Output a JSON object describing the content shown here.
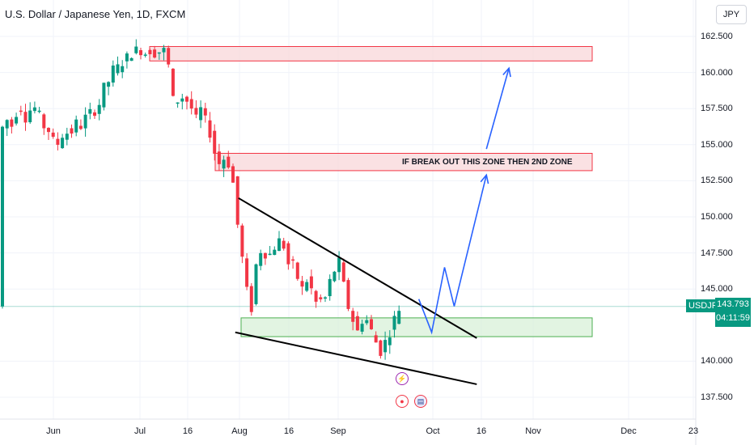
{
  "header": {
    "title": "U.S. Dollar / Japanese Yen, 1D, FXCM",
    "currency_button": "JPY"
  },
  "price_tag": {
    "symbol": "USDJPY",
    "price": "143.793",
    "countdown": "04:11:59"
  },
  "colors": {
    "up": "#089981",
    "down": "#f23645",
    "arrow": "#2962ff",
    "resistance_fill": "#f8d7da",
    "resistance_stroke": "#f23645",
    "support_fill": "#d8f0d8",
    "support_stroke": "#4caf50"
  },
  "annotations": {
    "zone_note": "IF BREAK OUT THIS ZONE THEN 2ND ZONE"
  },
  "events": [
    "lightning-icon",
    "record-icon",
    "us-flag-icon"
  ],
  "chart_data": {
    "type": "candlestick",
    "y_ticks": [
      "162.500",
      "160.000",
      "157.500",
      "155.000",
      "152.500",
      "150.000",
      "147.500",
      "145.000",
      "140.000",
      "137.500"
    ],
    "x_ticks": [
      "Jun",
      "Jul",
      "16",
      "Aug",
      "16",
      "Sep",
      "Oct",
      "16",
      "Nov",
      "Dec",
      "23"
    ],
    "ylim": [
      136.6,
      163.3
    ],
    "current_price": 143.793,
    "zones": [
      {
        "kind": "resistance",
        "from": 160.8,
        "to": 161.8
      },
      {
        "kind": "resistance",
        "from": 153.2,
        "to": 154.4
      },
      {
        "kind": "support",
        "from": 141.7,
        "to": 143.0
      }
    ],
    "trendlines": [
      {
        "name": "upper",
        "from": [
          "Aug 1",
          151.3
        ],
        "to": [
          "Oct 14",
          141.6
        ]
      },
      {
        "name": "lower",
        "from": [
          "Jul 31",
          142.0
        ],
        "to": [
          "Oct 14",
          138.4
        ]
      }
    ],
    "projection": [
      [
        "Sep 26",
        144.3
      ],
      [
        "Sep 30",
        142.0
      ],
      [
        "Oct 4",
        146.5
      ],
      [
        "Oct 7",
        143.8
      ],
      [
        "Oct 17",
        152.9
      ]
    ],
    "projection_2": [
      [
        "Oct 17",
        154.7
      ],
      [
        "Oct 24",
        160.3
      ]
    ]
  }
}
